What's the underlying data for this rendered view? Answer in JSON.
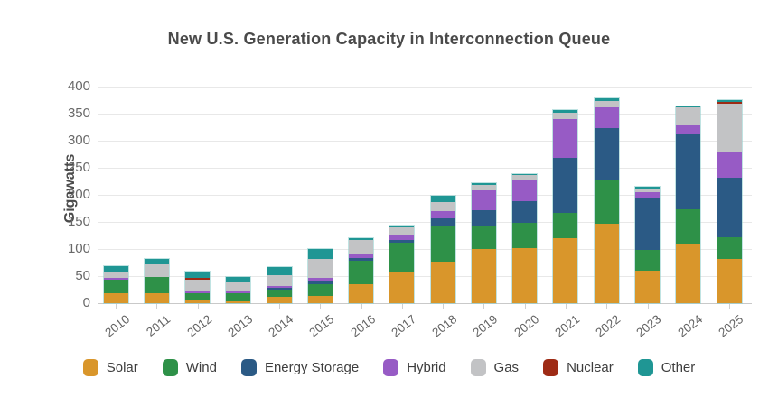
{
  "title": "New U.S. Generation Capacity in Interconnection Queue",
  "y_axis": {
    "label": "Gigawatts",
    "ticks": [
      400,
      350,
      300,
      250,
      200,
      150,
      100,
      50,
      0
    ]
  },
  "chart_data": {
    "type": "bar",
    "stacked": true,
    "title": "New U.S. Generation Capacity in Interconnection Queue",
    "xlabel": "",
    "ylabel": "Gigawatts",
    "ylim": [
      0,
      400
    ],
    "grid": true,
    "legend_position": "bottom",
    "categories": [
      "2010",
      "2011",
      "2012",
      "2013",
      "2014",
      "2015",
      "2016",
      "2017",
      "2018",
      "2019",
      "2020",
      "2021",
      "2022",
      "2023",
      "2024",
      "2025"
    ],
    "series": [
      {
        "name": "Solar",
        "color": "#D9962B",
        "values": [
          18,
          19,
          5,
          4,
          12,
          14,
          35,
          57,
          76,
          100,
          101,
          120,
          147,
          60,
          108,
          81
        ]
      },
      {
        "name": "Wind",
        "color": "#2E9148",
        "values": [
          26,
          30,
          14,
          15,
          13,
          21,
          44,
          55,
          67,
          41,
          48,
          47,
          80,
          39,
          65,
          41
        ]
      },
      {
        "name": "Energy Storage",
        "color": "#2B5A85",
        "values": [
          0,
          0,
          0,
          0,
          4,
          5,
          5,
          5,
          13,
          30,
          39,
          102,
          96,
          94,
          138,
          110
        ]
      },
      {
        "name": "Hybrid",
        "color": "#975BC5",
        "values": [
          3,
          0,
          2,
          2,
          3,
          6,
          6,
          10,
          14,
          37,
          39,
          71,
          39,
          12,
          18,
          46
        ]
      },
      {
        "name": "Gas",
        "color": "#C2C3C5",
        "values": [
          11,
          23,
          22,
          17,
          20,
          36,
          27,
          13,
          17,
          11,
          10,
          11,
          11,
          6,
          32,
          90
        ]
      },
      {
        "name": "Nuclear",
        "color": "#9E2B15",
        "values": [
          0,
          0,
          4,
          0,
          0,
          0,
          0,
          0,
          0,
          0,
          0,
          0,
          0,
          0,
          0,
          4
        ]
      },
      {
        "name": "Other",
        "color": "#1F9694",
        "values": [
          10,
          10,
          11,
          10,
          14,
          18,
          3,
          4,
          11,
          3,
          2,
          5,
          5,
          4,
          2,
          3
        ]
      }
    ]
  }
}
